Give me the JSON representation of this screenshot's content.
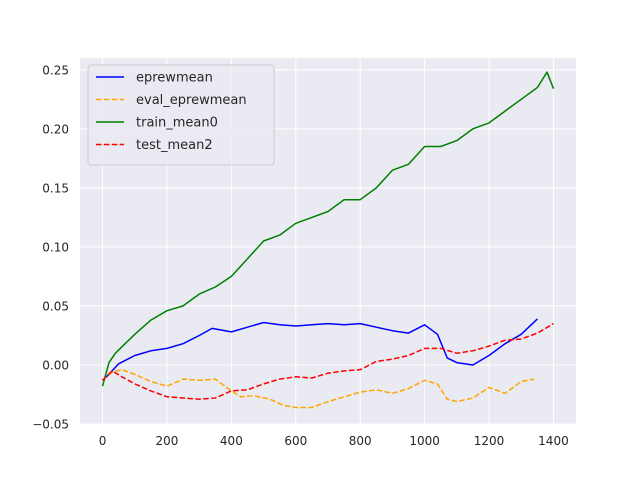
{
  "chart_data": {
    "type": "line",
    "title": "",
    "xlabel": "",
    "ylabel": "",
    "xlim": [
      -70,
      1470
    ],
    "ylim": [
      -0.05,
      0.26
    ],
    "x_ticks": [
      0,
      200,
      400,
      600,
      800,
      1000,
      1200,
      1400
    ],
    "x_tick_labels": [
      "0",
      "200",
      "400",
      "600",
      "800",
      "1000",
      "1200",
      "1400"
    ],
    "y_ticks": [
      -0.05,
      0.0,
      0.05,
      0.1,
      0.15,
      0.2,
      0.25
    ],
    "y_tick_labels": [
      "−0.05",
      "0.00",
      "0.05",
      "0.10",
      "0.15",
      "0.20",
      "0.25"
    ],
    "grid": true,
    "legend_position": "top-left",
    "series": [
      {
        "name": "eprewmean",
        "color": "#0000ff",
        "dash": "solid",
        "x": [
          0,
          20,
          50,
          100,
          150,
          200,
          250,
          300,
          340,
          400,
          450,
          500,
          550,
          600,
          650,
          700,
          750,
          800,
          850,
          900,
          950,
          1000,
          1040,
          1070,
          1100,
          1150,
          1200,
          1250,
          1300,
          1350
        ],
        "y": [
          -0.013,
          -0.008,
          0.001,
          0.008,
          0.012,
          0.014,
          0.018,
          0.025,
          0.031,
          0.028,
          0.032,
          0.036,
          0.034,
          0.033,
          0.034,
          0.035,
          0.034,
          0.035,
          0.032,
          0.029,
          0.027,
          0.034,
          0.026,
          0.006,
          0.002,
          0.0,
          0.008,
          0.018,
          0.026,
          0.039
        ]
      },
      {
        "name": "eval_eprewmean",
        "color": "#ffa500",
        "dash": "dashed",
        "x": [
          0,
          30,
          60,
          100,
          150,
          200,
          250,
          300,
          350,
          400,
          430,
          470,
          520,
          560,
          600,
          650,
          700,
          750,
          800,
          850,
          900,
          950,
          1000,
          1040,
          1070,
          1100,
          1150,
          1200,
          1250,
          1300,
          1340
        ],
        "y": [
          -0.013,
          -0.006,
          -0.004,
          -0.008,
          -0.014,
          -0.018,
          -0.012,
          -0.013,
          -0.012,
          -0.022,
          -0.027,
          -0.026,
          -0.029,
          -0.034,
          -0.036,
          -0.036,
          -0.031,
          -0.027,
          -0.023,
          -0.021,
          -0.024,
          -0.02,
          -0.013,
          -0.016,
          -0.029,
          -0.031,
          -0.028,
          -0.019,
          -0.024,
          -0.014,
          -0.012
        ]
      },
      {
        "name": "train_mean0",
        "color": "#008000",
        "dash": "solid",
        "x": [
          0,
          20,
          40,
          70,
          100,
          150,
          200,
          250,
          300,
          350,
          400,
          450,
          500,
          550,
          600,
          650,
          700,
          750,
          800,
          850,
          900,
          950,
          1000,
          1050,
          1100,
          1150,
          1200,
          1250,
          1300,
          1350,
          1380,
          1400
        ],
        "y": [
          -0.018,
          0.002,
          0.01,
          0.018,
          0.026,
          0.038,
          0.046,
          0.05,
          0.06,
          0.066,
          0.075,
          0.09,
          0.105,
          0.11,
          0.12,
          0.125,
          0.13,
          0.14,
          0.14,
          0.15,
          0.165,
          0.17,
          0.185,
          0.185,
          0.19,
          0.2,
          0.205,
          0.215,
          0.225,
          0.235,
          0.248,
          0.234
        ]
      },
      {
        "name": "test_mean2",
        "color": "#ff0000",
        "dash": "dashed",
        "x": [
          0,
          30,
          60,
          100,
          150,
          200,
          250,
          300,
          350,
          400,
          450,
          500,
          550,
          600,
          650,
          700,
          750,
          800,
          850,
          900,
          950,
          1000,
          1050,
          1100,
          1150,
          1200,
          1250,
          1300,
          1350,
          1400
        ],
        "y": [
          -0.013,
          -0.005,
          -0.01,
          -0.016,
          -0.022,
          -0.027,
          -0.028,
          -0.029,
          -0.028,
          -0.022,
          -0.021,
          -0.016,
          -0.012,
          -0.01,
          -0.011,
          -0.007,
          -0.005,
          -0.004,
          0.003,
          0.005,
          0.008,
          0.014,
          0.014,
          0.01,
          0.012,
          0.016,
          0.021,
          0.022,
          0.027,
          0.035
        ]
      }
    ]
  }
}
